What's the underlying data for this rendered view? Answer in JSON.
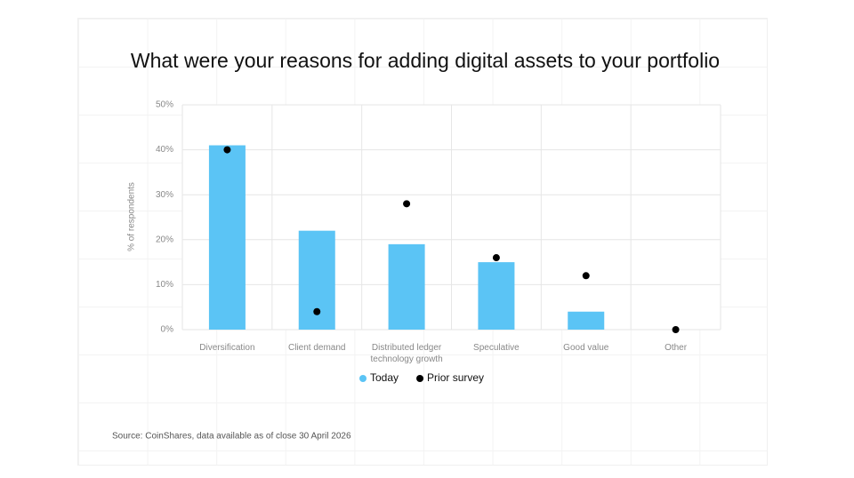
{
  "chart_data": {
    "type": "bar",
    "title": "What were your reasons for adding digital assets to your portfolio",
    "y_label": "% of respondents",
    "categories": [
      "Diversification",
      "Client demand",
      "Distributed ledger technology growth",
      "Speculative",
      "Good value",
      "Other"
    ],
    "series": [
      {
        "name": "Today",
        "type": "bar",
        "color": "#5bc4f5",
        "values": [
          41,
          22,
          19,
          15,
          4,
          0
        ]
      },
      {
        "name": "Prior survey",
        "type": "scatter",
        "color": "#000000",
        "values": [
          40,
          4,
          28,
          16,
          12,
          0
        ]
      }
    ],
    "ylim": [
      0,
      50
    ],
    "yticks": [
      {
        "value": 0,
        "label": "0%"
      },
      {
        "value": 10,
        "label": "10%"
      },
      {
        "value": 20,
        "label": "20%"
      },
      {
        "value": 30,
        "label": "30%"
      },
      {
        "value": 40,
        "label": "40%"
      },
      {
        "value": 50,
        "label": "50%"
      }
    ],
    "grid": true,
    "legend": "bottom",
    "source": "Source: CoinShares, data available as of close 30 April 2026"
  }
}
